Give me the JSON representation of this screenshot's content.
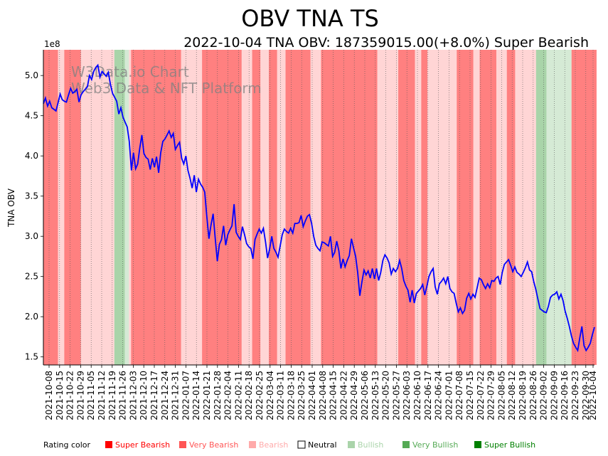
{
  "chart_data": {
    "type": "line",
    "title": "OBV TNA TS",
    "subtitle": "2022-10-04 TNA OBV: 187359015.00(+8.0%) Super Bearish",
    "ylabel": "TNA OBV",
    "y_multiplier": "1e8",
    "ylim": [
      1.4,
      5.32
    ],
    "y_ticks": [
      "1.5",
      "2.0",
      "2.5",
      "3.0",
      "3.5",
      "4.0",
      "4.5",
      "5.0"
    ],
    "x_ticks": [
      "2021-10-08",
      "2021-10-15",
      "2021-10-22",
      "2021-10-29",
      "2021-11-05",
      "2021-11-12",
      "2021-11-19",
      "2021-11-26",
      "2021-12-03",
      "2021-12-10",
      "2021-12-17",
      "2021-12-24",
      "2021-12-31",
      "2022-01-07",
      "2022-01-14",
      "2022-01-21",
      "2022-01-28",
      "2022-02-04",
      "2022-02-11",
      "2022-02-18",
      "2022-02-25",
      "2022-03-04",
      "2022-03-11",
      "2022-03-18",
      "2022-03-25",
      "2022-04-01",
      "2022-04-08",
      "2022-04-15",
      "2022-04-22",
      "2022-04-29",
      "2022-05-06",
      "2022-05-13",
      "2022-05-20",
      "2022-05-27",
      "2022-06-03",
      "2022-06-10",
      "2022-06-17",
      "2022-06-24",
      "2022-07-01",
      "2022-07-08",
      "2022-07-15",
      "2022-07-22",
      "2022-07-29",
      "2022-08-05",
      "2022-08-12",
      "2022-08-19",
      "2022-08-26",
      "2022-09-02",
      "2022-09-09",
      "2022-09-16",
      "2022-09-23",
      "2022-09-30",
      "2022-10-04"
    ],
    "grid": "vertical dotted",
    "watermark": [
      "W3Data.io Chart",
      "Web3 Data & NFT Platform"
    ],
    "series": [
      {
        "color": "#0000ff",
        "values": [
          4.65,
          4.72,
          4.62,
          4.68,
          4.6,
          4.58,
          4.56,
          4.66,
          4.77,
          4.7,
          4.68,
          4.67,
          4.76,
          4.84,
          4.78,
          4.8,
          4.83,
          4.67,
          4.76,
          4.8,
          4.83,
          4.86,
          5.0,
          4.95,
          5.05,
          5.1,
          5.13,
          4.98,
          5.05,
          5.02,
          4.99,
          5.04,
          4.89,
          4.78,
          4.73,
          4.68,
          4.52,
          4.6,
          4.48,
          4.42,
          4.36,
          4.18,
          3.82,
          4.04,
          3.84,
          3.9,
          4.1,
          4.26,
          4.03,
          3.98,
          3.96,
          3.83,
          3.97,
          3.86,
          3.99,
          3.79,
          4.04,
          4.18,
          4.21,
          4.26,
          4.31,
          4.23,
          4.28,
          4.08,
          4.13,
          4.17,
          3.97,
          3.9,
          4.0,
          3.82,
          3.72,
          3.6,
          3.76,
          3.55,
          3.71,
          3.65,
          3.61,
          3.55,
          3.25,
          2.97,
          3.14,
          3.28,
          2.98,
          2.69,
          2.9,
          2.96,
          3.13,
          2.89,
          3.02,
          3.08,
          3.13,
          3.4,
          3.05,
          3.0,
          2.96,
          3.12,
          3.02,
          2.91,
          2.87,
          2.85,
          2.72,
          2.96,
          3.03,
          3.09,
          3.04,
          3.1,
          2.93,
          2.73,
          2.85,
          3.0,
          2.85,
          2.8,
          2.74,
          2.88,
          3.02,
          3.09,
          3.06,
          3.04,
          3.1,
          3.04,
          3.16,
          3.16,
          3.17,
          3.26,
          3.12,
          3.19,
          3.25,
          3.27,
          3.16,
          3.0,
          2.89,
          2.85,
          2.82,
          2.93,
          2.92,
          2.9,
          2.88,
          3.0,
          2.75,
          2.8,
          2.94,
          2.82,
          2.6,
          2.72,
          2.62,
          2.7,
          2.76,
          2.97,
          2.86,
          2.75,
          2.55,
          2.26,
          2.43,
          2.58,
          2.52,
          2.57,
          2.48,
          2.6,
          2.47,
          2.6,
          2.45,
          2.55,
          2.7,
          2.77,
          2.73,
          2.67,
          2.53,
          2.6,
          2.56,
          2.6,
          2.7,
          2.6,
          2.45,
          2.38,
          2.33,
          2.18,
          2.33,
          2.17,
          2.29,
          2.32,
          2.35,
          2.4,
          2.27,
          2.38,
          2.5,
          2.56,
          2.6,
          2.37,
          2.28,
          2.41,
          2.44,
          2.48,
          2.41,
          2.5,
          2.35,
          2.31,
          2.29,
          2.17,
          2.06,
          2.11,
          2.04,
          2.08,
          2.23,
          2.29,
          2.22,
          2.28,
          2.24,
          2.36,
          2.48,
          2.46,
          2.4,
          2.35,
          2.41,
          2.36,
          2.45,
          2.44,
          2.48,
          2.5,
          2.4,
          2.55,
          2.65,
          2.68,
          2.71,
          2.64,
          2.56,
          2.62,
          2.55,
          2.53,
          2.5,
          2.55,
          2.61,
          2.68,
          2.58,
          2.56,
          2.44,
          2.34,
          2.22,
          2.1,
          2.08,
          2.06,
          2.05,
          2.13,
          2.24,
          2.27,
          2.28,
          2.31,
          2.22,
          2.28,
          2.2,
          2.07,
          1.98,
          1.88,
          1.76,
          1.67,
          1.62,
          1.58,
          1.74,
          1.88,
          1.64,
          1.58,
          1.62,
          1.67,
          1.78,
          1.87
        ]
      }
    ],
    "legend": {
      "placement": "bottom",
      "title": "Rating color",
      "items": [
        {
          "label": "Super Bearish",
          "color": "#ff0000"
        },
        {
          "label": "Very Bearish",
          "color": "#ff5555"
        },
        {
          "label": "Bearish",
          "color": "#ffaaaa"
        },
        {
          "label": "Neutral",
          "color": "#ffffff"
        },
        {
          "label": "Bullish",
          "color": "#aad4aa"
        },
        {
          "label": "Very Bullish",
          "color": "#55aa55"
        },
        {
          "label": "Super Bullish",
          "color": "#008000"
        }
      ]
    },
    "rating_bands": [
      {
        "rating": "very_bearish",
        "start": 0,
        "end": 7
      },
      {
        "rating": "bearish",
        "start": 7,
        "end": 10
      },
      {
        "rating": "very_bearish",
        "start": 10,
        "end": 18
      },
      {
        "rating": "bearish",
        "start": 18,
        "end": 34
      },
      {
        "rating": "very_bullish",
        "start": 34,
        "end": 39
      },
      {
        "rating": "bullish",
        "start": 39,
        "end": 41
      },
      {
        "rating": "bearish",
        "start": 41,
        "end": 42
      },
      {
        "rating": "very_bearish",
        "start": 42,
        "end": 66
      },
      {
        "rating": "bearish",
        "start": 66,
        "end": 70
      },
      {
        "rating": "bearish",
        "start": 70,
        "end": 76
      },
      {
        "rating": "very_bearish",
        "start": 76,
        "end": 95
      },
      {
        "rating": "bearish",
        "start": 95,
        "end": 100
      },
      {
        "rating": "very_bearish",
        "start": 100,
        "end": 104
      },
      {
        "rating": "bearish",
        "start": 104,
        "end": 108
      },
      {
        "rating": "very_bearish",
        "start": 108,
        "end": 112
      },
      {
        "rating": "bearish",
        "start": 112,
        "end": 116
      },
      {
        "rating": "very_bearish",
        "start": 116,
        "end": 128
      },
      {
        "rating": "bearish",
        "start": 128,
        "end": 133
      },
      {
        "rating": "very_bearish",
        "start": 133,
        "end": 160
      },
      {
        "rating": "bearish",
        "start": 160,
        "end": 170
      },
      {
        "rating": "very_bearish",
        "start": 170,
        "end": 178
      },
      {
        "rating": "bearish",
        "start": 178,
        "end": 181
      },
      {
        "rating": "very_bearish",
        "start": 181,
        "end": 184
      },
      {
        "rating": "bearish",
        "start": 184,
        "end": 198
      },
      {
        "rating": "very_bearish",
        "start": 198,
        "end": 206
      },
      {
        "rating": "bearish",
        "start": 206,
        "end": 209
      },
      {
        "rating": "very_bearish",
        "start": 209,
        "end": 217
      },
      {
        "rating": "bearish",
        "start": 217,
        "end": 222
      },
      {
        "rating": "very_bearish",
        "start": 222,
        "end": 226
      },
      {
        "rating": "bearish",
        "start": 226,
        "end": 236
      },
      {
        "rating": "very_bullish",
        "start": 236,
        "end": 241
      },
      {
        "rating": "bullish",
        "start": 241,
        "end": 253
      },
      {
        "rating": "very_bearish",
        "start": 253,
        "end": 265
      }
    ]
  }
}
